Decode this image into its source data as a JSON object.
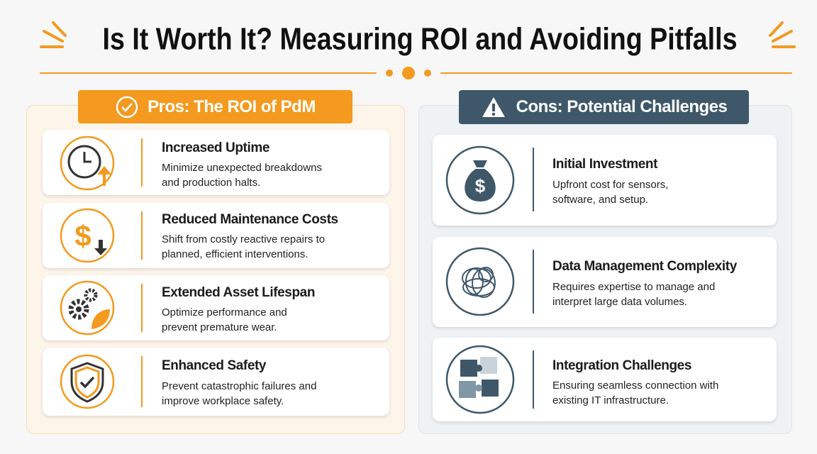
{
  "header": {
    "title": "Is It Worth It? Measuring ROI and Avoiding Pitfalls"
  },
  "pros": {
    "heading": "Pros: The ROI of PdM",
    "items": [
      {
        "title": "Increased Uptime",
        "text": "Minimize unexpected breakdowns and production halts."
      },
      {
        "title": "Reduced Maintenance Costs",
        "text": "Shift from costly reactive repairs to planned, efficient interventions."
      },
      {
        "title": "Extended Asset Lifespan",
        "text": "Optimize performance and prevent premature wear."
      },
      {
        "title": "Enhanced Safety",
        "text": "Prevent catastrophic failures and improve workplace safety."
      }
    ]
  },
  "cons": {
    "heading": "Cons: Potential Challenges",
    "items": [
      {
        "title": "Initial Investment",
        "text": "Upfront cost for sensors, software, and setup."
      },
      {
        "title": "Data Management Complexity",
        "text": "Requires expertise to manage and interpret large data volumes."
      },
      {
        "title": "Integration Challenges",
        "text": "Ensuring seamless connection with existing IT infrastructure."
      }
    ]
  }
}
